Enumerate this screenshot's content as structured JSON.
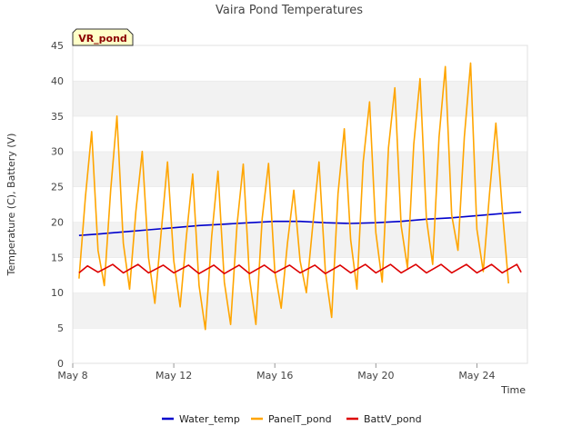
{
  "chart_data": {
    "type": "line",
    "title": "Vaira Pond Temperatures",
    "station_label": "VR_pond",
    "xlabel": "Time",
    "ylabel": "Temperature (C), Battery (V)",
    "xlim": [
      "2024-05-08",
      "2024-05-26"
    ],
    "ylim": [
      0,
      45
    ],
    "x_ticks": [
      "May 8",
      "May 12",
      "May 16",
      "May 20",
      "May 24"
    ],
    "x_tick_dates": [
      "2024-05-08",
      "2024-05-12",
      "2024-05-16",
      "2024-05-20",
      "2024-05-24"
    ],
    "y_ticks": [
      0,
      5,
      10,
      15,
      20,
      25,
      30,
      35,
      40,
      45
    ],
    "grid": "horizontal bands",
    "legend_position": "bottom",
    "series": [
      {
        "name": "Water_temp",
        "color": "#0000cc",
        "points": [
          [
            "2024-05-08 06:00",
            18.1
          ],
          [
            "2024-05-09 00:00",
            18.3
          ],
          [
            "2024-05-10 00:00",
            18.6
          ],
          [
            "2024-05-11 00:00",
            18.9
          ],
          [
            "2024-05-12 00:00",
            19.2
          ],
          [
            "2024-05-13 00:00",
            19.5
          ],
          [
            "2024-05-14 00:00",
            19.7
          ],
          [
            "2024-05-15 00:00",
            19.9
          ],
          [
            "2024-05-16 00:00",
            20.1
          ],
          [
            "2024-05-17 00:00",
            20.1
          ],
          [
            "2024-05-18 00:00",
            19.9
          ],
          [
            "2024-05-19 00:00",
            19.8
          ],
          [
            "2024-05-20 00:00",
            19.9
          ],
          [
            "2024-05-21 00:00",
            20.1
          ],
          [
            "2024-05-22 00:00",
            20.4
          ],
          [
            "2024-05-23 00:00",
            20.6
          ],
          [
            "2024-05-24 00:00",
            20.9
          ],
          [
            "2024-05-25 00:00",
            21.2
          ],
          [
            "2024-05-25 18:00",
            21.4
          ]
        ]
      },
      {
        "name": "PanelT_pond",
        "color": "#ffa500",
        "points": [
          [
            "2024-05-08 06:00",
            12.0
          ],
          [
            "2024-05-08 12:00",
            23.5
          ],
          [
            "2024-05-08 18:00",
            32.8
          ],
          [
            "2024-05-09 00:00",
            16.0
          ],
          [
            "2024-05-09 06:00",
            11.0
          ],
          [
            "2024-05-09 12:00",
            24.5
          ],
          [
            "2024-05-09 18:00",
            35.0
          ],
          [
            "2024-05-10 00:00",
            17.0
          ],
          [
            "2024-05-10 06:00",
            10.5
          ],
          [
            "2024-05-10 12:00",
            21.5
          ],
          [
            "2024-05-10 18:00",
            30.0
          ],
          [
            "2024-05-11 00:00",
            15.0
          ],
          [
            "2024-05-11 06:00",
            8.5
          ],
          [
            "2024-05-11 12:00",
            18.5
          ],
          [
            "2024-05-11 18:00",
            28.5
          ],
          [
            "2024-05-12 00:00",
            14.5
          ],
          [
            "2024-05-12 06:00",
            8.0
          ],
          [
            "2024-05-12 12:00",
            18.0
          ],
          [
            "2024-05-12 18:00",
            26.8
          ],
          [
            "2024-05-13 00:00",
            11.0
          ],
          [
            "2024-05-13 06:00",
            4.8
          ],
          [
            "2024-05-13 12:00",
            18.0
          ],
          [
            "2024-05-13 18:00",
            27.2
          ],
          [
            "2024-05-14 00:00",
            11.5
          ],
          [
            "2024-05-14 06:00",
            5.5
          ],
          [
            "2024-05-14 12:00",
            19.5
          ],
          [
            "2024-05-14 18:00",
            28.2
          ],
          [
            "2024-05-15 00:00",
            12.0
          ],
          [
            "2024-05-15 06:00",
            5.5
          ],
          [
            "2024-05-15 12:00",
            20.5
          ],
          [
            "2024-05-15 18:00",
            28.3
          ],
          [
            "2024-05-16 00:00",
            13.0
          ],
          [
            "2024-05-16 06:00",
            7.8
          ],
          [
            "2024-05-16 12:00",
            17.0
          ],
          [
            "2024-05-16 18:00",
            24.5
          ],
          [
            "2024-05-17 00:00",
            14.5
          ],
          [
            "2024-05-17 06:00",
            10.0
          ],
          [
            "2024-05-17 12:00",
            19.5
          ],
          [
            "2024-05-17 18:00",
            28.5
          ],
          [
            "2024-05-18 00:00",
            13.0
          ],
          [
            "2024-05-18 06:00",
            6.5
          ],
          [
            "2024-05-18 12:00",
            24.0
          ],
          [
            "2024-05-18 18:00",
            33.2
          ],
          [
            "2024-05-19 00:00",
            17.5
          ],
          [
            "2024-05-19 06:00",
            10.5
          ],
          [
            "2024-05-19 12:00",
            28.5
          ],
          [
            "2024-05-19 18:00",
            37.0
          ],
          [
            "2024-05-20 00:00",
            18.5
          ],
          [
            "2024-05-20 06:00",
            11.5
          ],
          [
            "2024-05-20 12:00",
            30.5
          ],
          [
            "2024-05-20 18:00",
            39.0
          ],
          [
            "2024-05-21 00:00",
            19.5
          ],
          [
            "2024-05-21 06:00",
            13.5
          ],
          [
            "2024-05-21 12:00",
            31.0
          ],
          [
            "2024-05-21 18:00",
            40.3
          ],
          [
            "2024-05-22 00:00",
            20.5
          ],
          [
            "2024-05-22 06:00",
            14.0
          ],
          [
            "2024-05-22 12:00",
            32.0
          ],
          [
            "2024-05-22 18:00",
            42.0
          ],
          [
            "2024-05-23 00:00",
            21.0
          ],
          [
            "2024-05-23 06:00",
            16.0
          ],
          [
            "2024-05-23 12:00",
            32.0
          ],
          [
            "2024-05-23 18:00",
            42.5
          ],
          [
            "2024-05-24 00:00",
            19.0
          ],
          [
            "2024-05-24 06:00",
            13.0
          ],
          [
            "2024-05-24 12:00",
            24.0
          ],
          [
            "2024-05-24 18:00",
            34.0
          ],
          [
            "2024-05-25 00:00",
            22.0
          ],
          [
            "2024-05-25 06:00",
            11.3
          ]
        ]
      },
      {
        "name": "BattV_pond",
        "color": "#dd0000",
        "points": [
          [
            "2024-05-08 06:00",
            12.8
          ],
          [
            "2024-05-08 14:00",
            13.8
          ],
          [
            "2024-05-09 00:00",
            12.9
          ],
          [
            "2024-05-09 14:00",
            14.0
          ],
          [
            "2024-05-10 00:00",
            12.8
          ],
          [
            "2024-05-10 14:00",
            14.0
          ],
          [
            "2024-05-11 00:00",
            12.8
          ],
          [
            "2024-05-11 14:00",
            13.9
          ],
          [
            "2024-05-12 00:00",
            12.8
          ],
          [
            "2024-05-12 14:00",
            13.9
          ],
          [
            "2024-05-13 00:00",
            12.7
          ],
          [
            "2024-05-13 14:00",
            13.9
          ],
          [
            "2024-05-14 00:00",
            12.7
          ],
          [
            "2024-05-14 14:00",
            13.9
          ],
          [
            "2024-05-15 00:00",
            12.7
          ],
          [
            "2024-05-15 14:00",
            13.9
          ],
          [
            "2024-05-16 00:00",
            12.8
          ],
          [
            "2024-05-16 14:00",
            13.9
          ],
          [
            "2024-05-17 00:00",
            12.8
          ],
          [
            "2024-05-17 14:00",
            13.9
          ],
          [
            "2024-05-18 00:00",
            12.7
          ],
          [
            "2024-05-18 14:00",
            13.9
          ],
          [
            "2024-05-19 00:00",
            12.8
          ],
          [
            "2024-05-19 14:00",
            14.0
          ],
          [
            "2024-05-20 00:00",
            12.8
          ],
          [
            "2024-05-20 14:00",
            14.0
          ],
          [
            "2024-05-21 00:00",
            12.8
          ],
          [
            "2024-05-21 14:00",
            14.0
          ],
          [
            "2024-05-22 00:00",
            12.8
          ],
          [
            "2024-05-22 14:00",
            14.0
          ],
          [
            "2024-05-23 00:00",
            12.8
          ],
          [
            "2024-05-23 14:00",
            14.0
          ],
          [
            "2024-05-24 00:00",
            12.8
          ],
          [
            "2024-05-24 14:00",
            14.0
          ],
          [
            "2024-05-25 00:00",
            12.8
          ],
          [
            "2024-05-25 14:00",
            14.0
          ],
          [
            "2024-05-25 18:00",
            12.9
          ]
        ]
      }
    ]
  }
}
